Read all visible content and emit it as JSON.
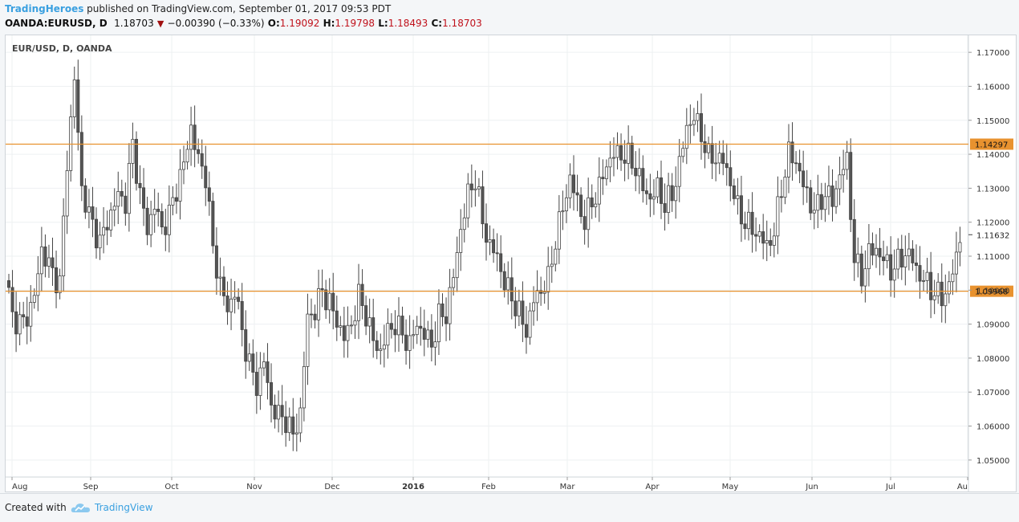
{
  "header": {
    "brand": "TradingHeroes",
    "published": "published on TradingView.com, September 01, 2017 09:53 PDT",
    "symbol": "OANDA:EURUSD, D",
    "last": "1.18703",
    "change": "−0.00390 (−0.33%)",
    "open_label": "O:",
    "open": "1.19092",
    "high_label": "H:",
    "high": "1.19798",
    "low_label": "L:",
    "low": "1.18493",
    "close_label": "C:",
    "close": "1.18703"
  },
  "footer": {
    "created": "Created with",
    "tv": "TradingView"
  },
  "chart_data": {
    "type": "candlestick",
    "title": "EUR/USD, D, OANDA",
    "ylim": [
      1.045,
      1.175
    ],
    "y_ticks": [
      "1.05000",
      "1.06000",
      "1.07000",
      "1.08000",
      "1.09000",
      "1.10000",
      "1.11000",
      "1.12000",
      "1.13000",
      "1.14000",
      "1.15000",
      "1.16000",
      "1.17000"
    ],
    "x_labels": [
      "Aug",
      "Sep",
      "Oct",
      "Nov",
      "Dec",
      "2016",
      "Feb",
      "Mar",
      "Apr",
      "May",
      "Jun",
      "Jul",
      "Au"
    ],
    "horizontal_lines": [
      {
        "value": 1.14297,
        "label": "1.14297",
        "color": "#e8922f"
      },
      {
        "value": 1.09968,
        "label": "1.09968",
        "color": "#e8922f"
      }
    ],
    "last_price": {
      "value": 1.11632,
      "label": "1.11632"
    },
    "up_color": "#ffffff",
    "down_color": "#555555",
    "grid": true,
    "price_anchors": [
      [
        0,
        1.099
      ],
      [
        1,
        1.092
      ],
      [
        4,
        1.09
      ],
      [
        7,
        1.098
      ],
      [
        9,
        1.112
      ],
      [
        12,
        1.105
      ],
      [
        14,
        1.102
      ],
      [
        16,
        1.138
      ],
      [
        18,
        1.162
      ],
      [
        20,
        1.13
      ],
      [
        22,
        1.122
      ],
      [
        25,
        1.114
      ],
      [
        27,
        1.12
      ],
      [
        30,
        1.128
      ],
      [
        32,
        1.126
      ],
      [
        34,
        1.143
      ],
      [
        36,
        1.128
      ],
      [
        38,
        1.118
      ],
      [
        40,
        1.125
      ],
      [
        42,
        1.118
      ],
      [
        44,
        1.122
      ],
      [
        46,
        1.13
      ],
      [
        48,
        1.137
      ],
      [
        50,
        1.148
      ],
      [
        52,
        1.138
      ],
      [
        54,
        1.134
      ],
      [
        56,
        1.112
      ],
      [
        58,
        1.102
      ],
      [
        60,
        1.094
      ],
      [
        62,
        1.1
      ],
      [
        64,
        1.088
      ],
      [
        66,
        1.078
      ],
      [
        68,
        1.072
      ],
      [
        70,
        1.079
      ],
      [
        72,
        1.066
      ],
      [
        74,
        1.063
      ],
      [
        76,
        1.062
      ],
      [
        78,
        1.057
      ],
      [
        80,
        1.064
      ],
      [
        82,
        1.092
      ],
      [
        84,
        1.094
      ],
      [
        86,
        1.1
      ],
      [
        88,
        1.096
      ],
      [
        90,
        1.091
      ],
      [
        92,
        1.086
      ],
      [
        94,
        1.09
      ],
      [
        96,
        1.098
      ],
      [
        98,
        1.093
      ],
      [
        100,
        1.085
      ],
      [
        102,
        1.082
      ],
      [
        104,
        1.088
      ],
      [
        106,
        1.09
      ],
      [
        108,
        1.087
      ],
      [
        110,
        1.084
      ],
      [
        112,
        1.09
      ],
      [
        114,
        1.087
      ],
      [
        116,
        1.084
      ],
      [
        118,
        1.092
      ],
      [
        120,
        1.093
      ],
      [
        122,
        1.104
      ],
      [
        124,
        1.118
      ],
      [
        126,
        1.128
      ],
      [
        128,
        1.133
      ],
      [
        130,
        1.12
      ],
      [
        132,
        1.113
      ],
      [
        134,
        1.11
      ],
      [
        136,
        1.102
      ],
      [
        138,
        1.098
      ],
      [
        140,
        1.093
      ],
      [
        142,
        1.088
      ],
      [
        144,
        1.097
      ],
      [
        146,
        1.1
      ],
      [
        148,
        1.103
      ],
      [
        150,
        1.115
      ],
      [
        152,
        1.124
      ],
      [
        154,
        1.133
      ],
      [
        156,
        1.126
      ],
      [
        158,
        1.12
      ],
      [
        160,
        1.126
      ],
      [
        162,
        1.13
      ],
      [
        164,
        1.137
      ],
      [
        166,
        1.14
      ],
      [
        168,
        1.14
      ],
      [
        170,
        1.139
      ],
      [
        172,
        1.136
      ],
      [
        174,
        1.13
      ],
      [
        176,
        1.127
      ],
      [
        178,
        1.13
      ],
      [
        180,
        1.125
      ],
      [
        182,
        1.128
      ],
      [
        184,
        1.137
      ],
      [
        186,
        1.148
      ],
      [
        188,
        1.151
      ],
      [
        190,
        1.146
      ],
      [
        192,
        1.139
      ],
      [
        194,
        1.139
      ],
      [
        196,
        1.138
      ],
      [
        198,
        1.132
      ],
      [
        200,
        1.124
      ],
      [
        202,
        1.12
      ],
      [
        204,
        1.118
      ],
      [
        206,
        1.116
      ],
      [
        208,
        1.113
      ],
      [
        210,
        1.117
      ],
      [
        212,
        1.13
      ],
      [
        214,
        1.14
      ],
      [
        216,
        1.138
      ],
      [
        218,
        1.131
      ],
      [
        220,
        1.125
      ],
      [
        222,
        1.124
      ],
      [
        224,
        1.129
      ],
      [
        226,
        1.126
      ],
      [
        228,
        1.134
      ],
      [
        230,
        1.138
      ],
      [
        232,
        1.109
      ],
      [
        234,
        1.104
      ],
      [
        236,
        1.111
      ],
      [
        238,
        1.112
      ],
      [
        240,
        1.109
      ],
      [
        242,
        1.106
      ],
      [
        244,
        1.108
      ],
      [
        246,
        1.111
      ],
      [
        248,
        1.109
      ],
      [
        250,
        1.104
      ],
      [
        252,
        1.102
      ],
      [
        254,
        1.099
      ],
      [
        256,
        1.098
      ],
      [
        258,
        1.101
      ],
      [
        260,
        1.11
      ],
      [
        261,
        1.116
      ]
    ]
  }
}
